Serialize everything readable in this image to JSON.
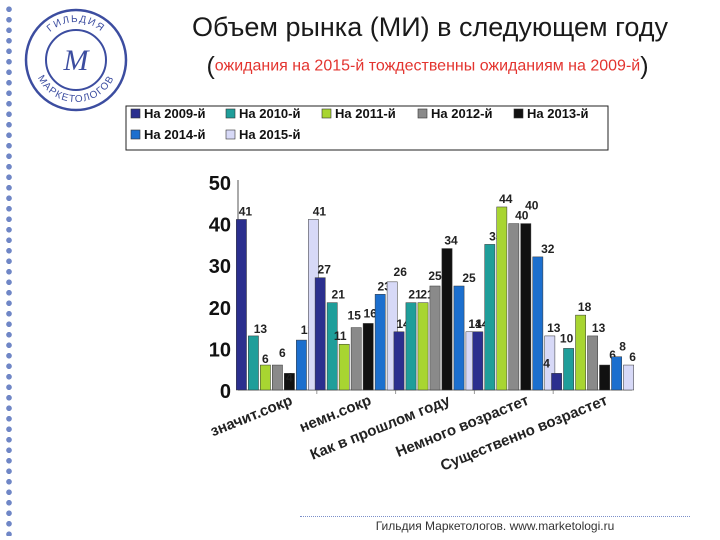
{
  "logo": {
    "top_text": "ГИЛЬДИЯ",
    "bottom_text": "МАРКЕТОЛОГОВ",
    "monogram": "М"
  },
  "header": {
    "title": "Объем рынка (МИ) в следующем году",
    "subtitle_open": "(",
    "subtitle": "ожидания на 2015-й тождественны ожиданиям на 2009-й",
    "subtitle_close": ")"
  },
  "footer": {
    "text": "Гильдия Маркетологов. www.marketologi.ru"
  },
  "chart_data": {
    "type": "bar",
    "categories": [
      "значит.сокр",
      "немн.сокр",
      "Как в прошлом году",
      "Немного возрастет",
      "Существенно возрастет"
    ],
    "ylim": [
      0,
      50
    ],
    "yticks": [
      0,
      10,
      20,
      30,
      40,
      50
    ],
    "legend_position": "top",
    "series": [
      {
        "name": "На 2009-й",
        "color": "#2b2f8e",
        "values": [
          41,
          27,
          14,
          14,
          4
        ]
      },
      {
        "name": "На 2010-й",
        "color": "#1f9e9a",
        "values": [
          13,
          21,
          21,
          35,
          10
        ]
      },
      {
        "name": "На 2011-й",
        "color": "#a8d531",
        "values": [
          6,
          11,
          21,
          44,
          18
        ]
      },
      {
        "name": "На 2012-й",
        "color": "#8a8a8a",
        "values": [
          6,
          15,
          25,
          40,
          13
        ]
      },
      {
        "name": "На 2013-й",
        "color": "#111111",
        "values": [
          4,
          16,
          34,
          40,
          6
        ]
      },
      {
        "name": "На 2014-й",
        "color": "#1c6fce",
        "values": [
          12,
          23,
          25,
          32,
          8
        ]
      },
      {
        "name": "На 2015-й",
        "color": "#d7d9f7",
        "values": [
          41,
          26,
          14,
          13,
          6
        ]
      }
    ]
  }
}
